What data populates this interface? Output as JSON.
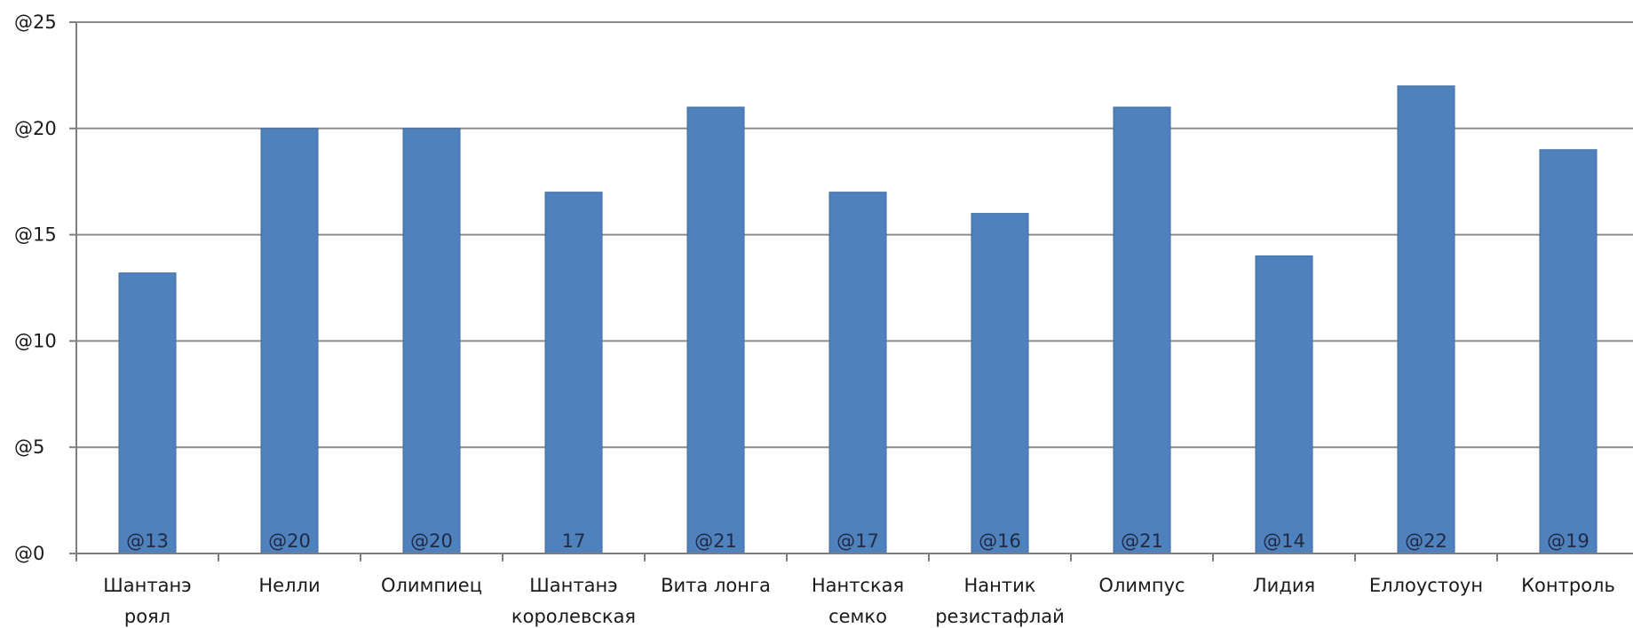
{
  "chart_data": {
    "type": "bar",
    "title": "",
    "xlabel": "",
    "ylabel": "",
    "categories": [
      [
        "Шантанэ",
        "роял"
      ],
      [
        "Нелли"
      ],
      [
        "Олимпиец"
      ],
      [
        "Шантанэ",
        "королевская"
      ],
      [
        "Вита лонга"
      ],
      [
        "Нантская",
        "семко"
      ],
      [
        "Нантик",
        "резистафлай"
      ],
      [
        "Олимпус"
      ],
      [
        "Лидия"
      ],
      [
        "Еллоустоун"
      ],
      [
        "Контроль"
      ]
    ],
    "values": [
      13.2,
      20,
      20,
      17,
      21,
      17,
      16,
      21,
      14,
      22,
      19
    ],
    "data_labels": [
      "@13",
      "@20",
      "@20",
      "17",
      "@21",
      "@17",
      "@16",
      "@21",
      "@14",
      "@22",
      "@19"
    ],
    "y_ticks": [
      {
        "value": 0,
        "label": "@0"
      },
      {
        "value": 5,
        "label": "@5"
      },
      {
        "value": 10,
        "label": "@10"
      },
      {
        "value": 15,
        "label": "@15"
      },
      {
        "value": 20,
        "label": "@20"
      },
      {
        "value": 25,
        "label": "@25"
      }
    ],
    "ylim": [
      0,
      25
    ],
    "grid": true,
    "legend": "none",
    "colors": {
      "bar": "#4f81bd",
      "bar_edge": "#3d6c9e",
      "grid": "#8c8c8c",
      "axis": "#7f7f7f"
    }
  }
}
